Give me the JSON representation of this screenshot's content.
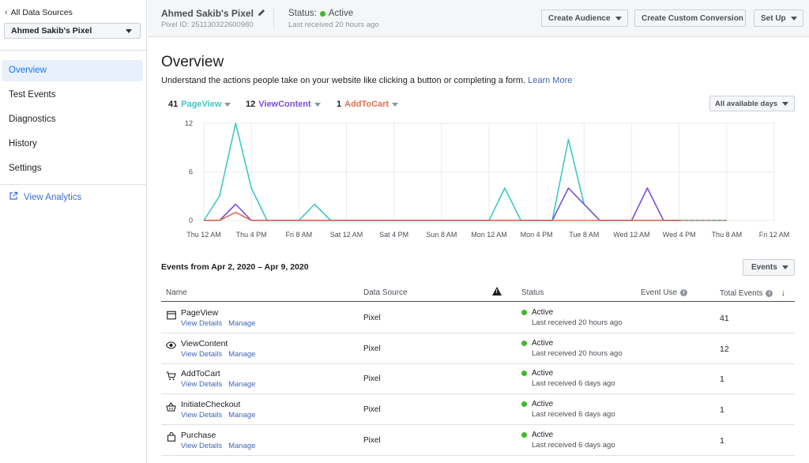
{
  "sidebar": {
    "back_label": "All Data Sources",
    "pixel_select": "Ahmed Sakib's Pixel",
    "items": [
      {
        "label": "Overview",
        "active": true
      },
      {
        "label": "Test Events"
      },
      {
        "label": "Diagnostics"
      },
      {
        "label": "History"
      },
      {
        "label": "Settings"
      }
    ],
    "view_analytics": "View Analytics"
  },
  "header": {
    "pixel_name": "Ahmed Sakib's Pixel",
    "pixel_id": "Pixel ID: 251130322600980",
    "status_label": "Status:",
    "status_value": "Active",
    "last_received": "Last received 20 hours ago",
    "buttons": {
      "create_audience": "Create Audience",
      "create_conversion": "Create Custom Conversion",
      "set_up": "Set Up"
    }
  },
  "main": {
    "title": "Overview",
    "subtitle": "Understand the actions people take on your website like clicking a button or completing a form.",
    "learn_more": "Learn More",
    "metrics": [
      {
        "count": "41",
        "name": "PageView",
        "color": "#41c7c7"
      },
      {
        "count": "12",
        "name": "ViewContent",
        "color": "#7a4fd6"
      },
      {
        "count": "1",
        "name": "AddToCart",
        "color": "#e0704d"
      }
    ],
    "days_filter": "All available days",
    "events_range": "Events from Apr 2, 2020 – Apr 9, 2020",
    "events_button": "Events"
  },
  "chart_data": {
    "type": "line",
    "x": [
      "Thu 12 AM",
      "Thu 4 PM",
      "Fri 8 AM",
      "Sat 12 AM",
      "Sat 4 PM",
      "Sun 8 AM",
      "Mon 12 AM",
      "Mon 4 PM",
      "Tue 8 AM",
      "Wed 12 AM",
      "Wed 4 PM",
      "Thu 8 AM",
      "Fri 12 AM"
    ],
    "ylim": [
      0,
      12
    ],
    "yticks": [
      0,
      6,
      12
    ],
    "grid": true,
    "series": [
      {
        "name": "PageView",
        "color": "#41c7c7",
        "points": [
          [
            0,
            0
          ],
          [
            0.33,
            3
          ],
          [
            0.67,
            12
          ],
          [
            1,
            4
          ],
          [
            1.33,
            0
          ],
          [
            2,
            0
          ],
          [
            2.33,
            2
          ],
          [
            2.67,
            0
          ],
          [
            6,
            0
          ],
          [
            6.33,
            4
          ],
          [
            6.67,
            0
          ],
          [
            7.33,
            0
          ],
          [
            7.67,
            10
          ],
          [
            8,
            2
          ],
          [
            8.33,
            0
          ],
          [
            11,
            0
          ]
        ]
      },
      {
        "name": "ViewContent",
        "color": "#7a4fd6",
        "points": [
          [
            0,
            0
          ],
          [
            0.33,
            0
          ],
          [
            0.67,
            2
          ],
          [
            1,
            0
          ],
          [
            7.33,
            0
          ],
          [
            7.67,
            4
          ],
          [
            8,
            2
          ],
          [
            8.33,
            0
          ],
          [
            9,
            0
          ],
          [
            9.33,
            4
          ],
          [
            9.67,
            0
          ],
          [
            10,
            0
          ]
        ]
      },
      {
        "name": "AddToCart",
        "color": "#e0704d",
        "points": [
          [
            0,
            0
          ],
          [
            0.33,
            0
          ],
          [
            0.67,
            1
          ],
          [
            1,
            0
          ],
          [
            10,
            0
          ]
        ]
      }
    ],
    "projection": {
      "color": "#e0704d",
      "points": [
        [
          10,
          0
        ],
        [
          11,
          0
        ]
      ]
    }
  },
  "table": {
    "headers": {
      "name": "Name",
      "source": "Data Source",
      "status": "Status",
      "event_use": "Event Use",
      "total": "Total Events"
    },
    "rows": [
      {
        "icon": "browser-window-icon",
        "name": "PageView",
        "view": "View Details",
        "manage": "Manage",
        "source": "Pixel",
        "status": "Active",
        "last": "Last received 20 hours ago",
        "total": "41"
      },
      {
        "icon": "eye-icon",
        "name": "ViewContent",
        "view": "View Details",
        "manage": "Manage",
        "source": "Pixel",
        "status": "Active",
        "last": "Last received 20 hours ago",
        "total": "12"
      },
      {
        "icon": "cart-icon",
        "name": "AddToCart",
        "view": "View Details",
        "manage": "Manage",
        "source": "Pixel",
        "status": "Active",
        "last": "Last received 6 days ago",
        "total": "1"
      },
      {
        "icon": "basket-icon",
        "name": "InitiateCheckout",
        "view": "View Details",
        "manage": "Manage",
        "source": "Pixel",
        "status": "Active",
        "last": "Last received 6 days ago",
        "total": "1"
      },
      {
        "icon": "shopping-bag-icon",
        "name": "Purchase",
        "view": "View Details",
        "manage": "Manage",
        "source": "Pixel",
        "status": "Active",
        "last": "Last received 6 days ago",
        "total": "1"
      }
    ]
  }
}
